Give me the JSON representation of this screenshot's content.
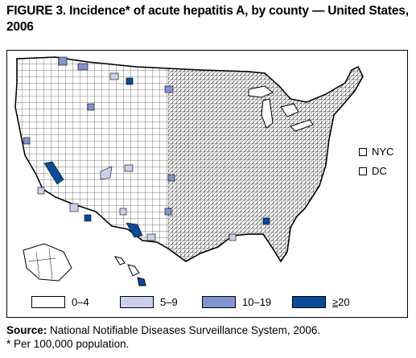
{
  "title": {
    "figure_label": "FIGURE 3.",
    "text": " Incidence* of acute hepatitis A, by county — United States,  2006"
  },
  "map": {
    "insets": [
      {
        "label": "NYC"
      },
      {
        "label": "DC"
      }
    ],
    "colors": {
      "class_0_4": "#ffffff",
      "class_5_9": "#c8d0ec",
      "class_10_19": "#7f95cf",
      "class_20_plus": "#0a4a9a",
      "border": "#000000"
    }
  },
  "legend": {
    "items": [
      {
        "label": "0–4",
        "color": "#ffffff"
      },
      {
        "label": "5–9",
        "color": "#c8d0ec"
      },
      {
        "label": "10–19",
        "color": "#7f95cf"
      },
      {
        "label": "20",
        "prefix": "≥",
        "color": "#0a4a9a"
      }
    ]
  },
  "source": {
    "label": "Source:",
    "text": " National Notifiable Diseases Surveillance System, 2006."
  },
  "footnote": "* Per 100,000 population."
}
